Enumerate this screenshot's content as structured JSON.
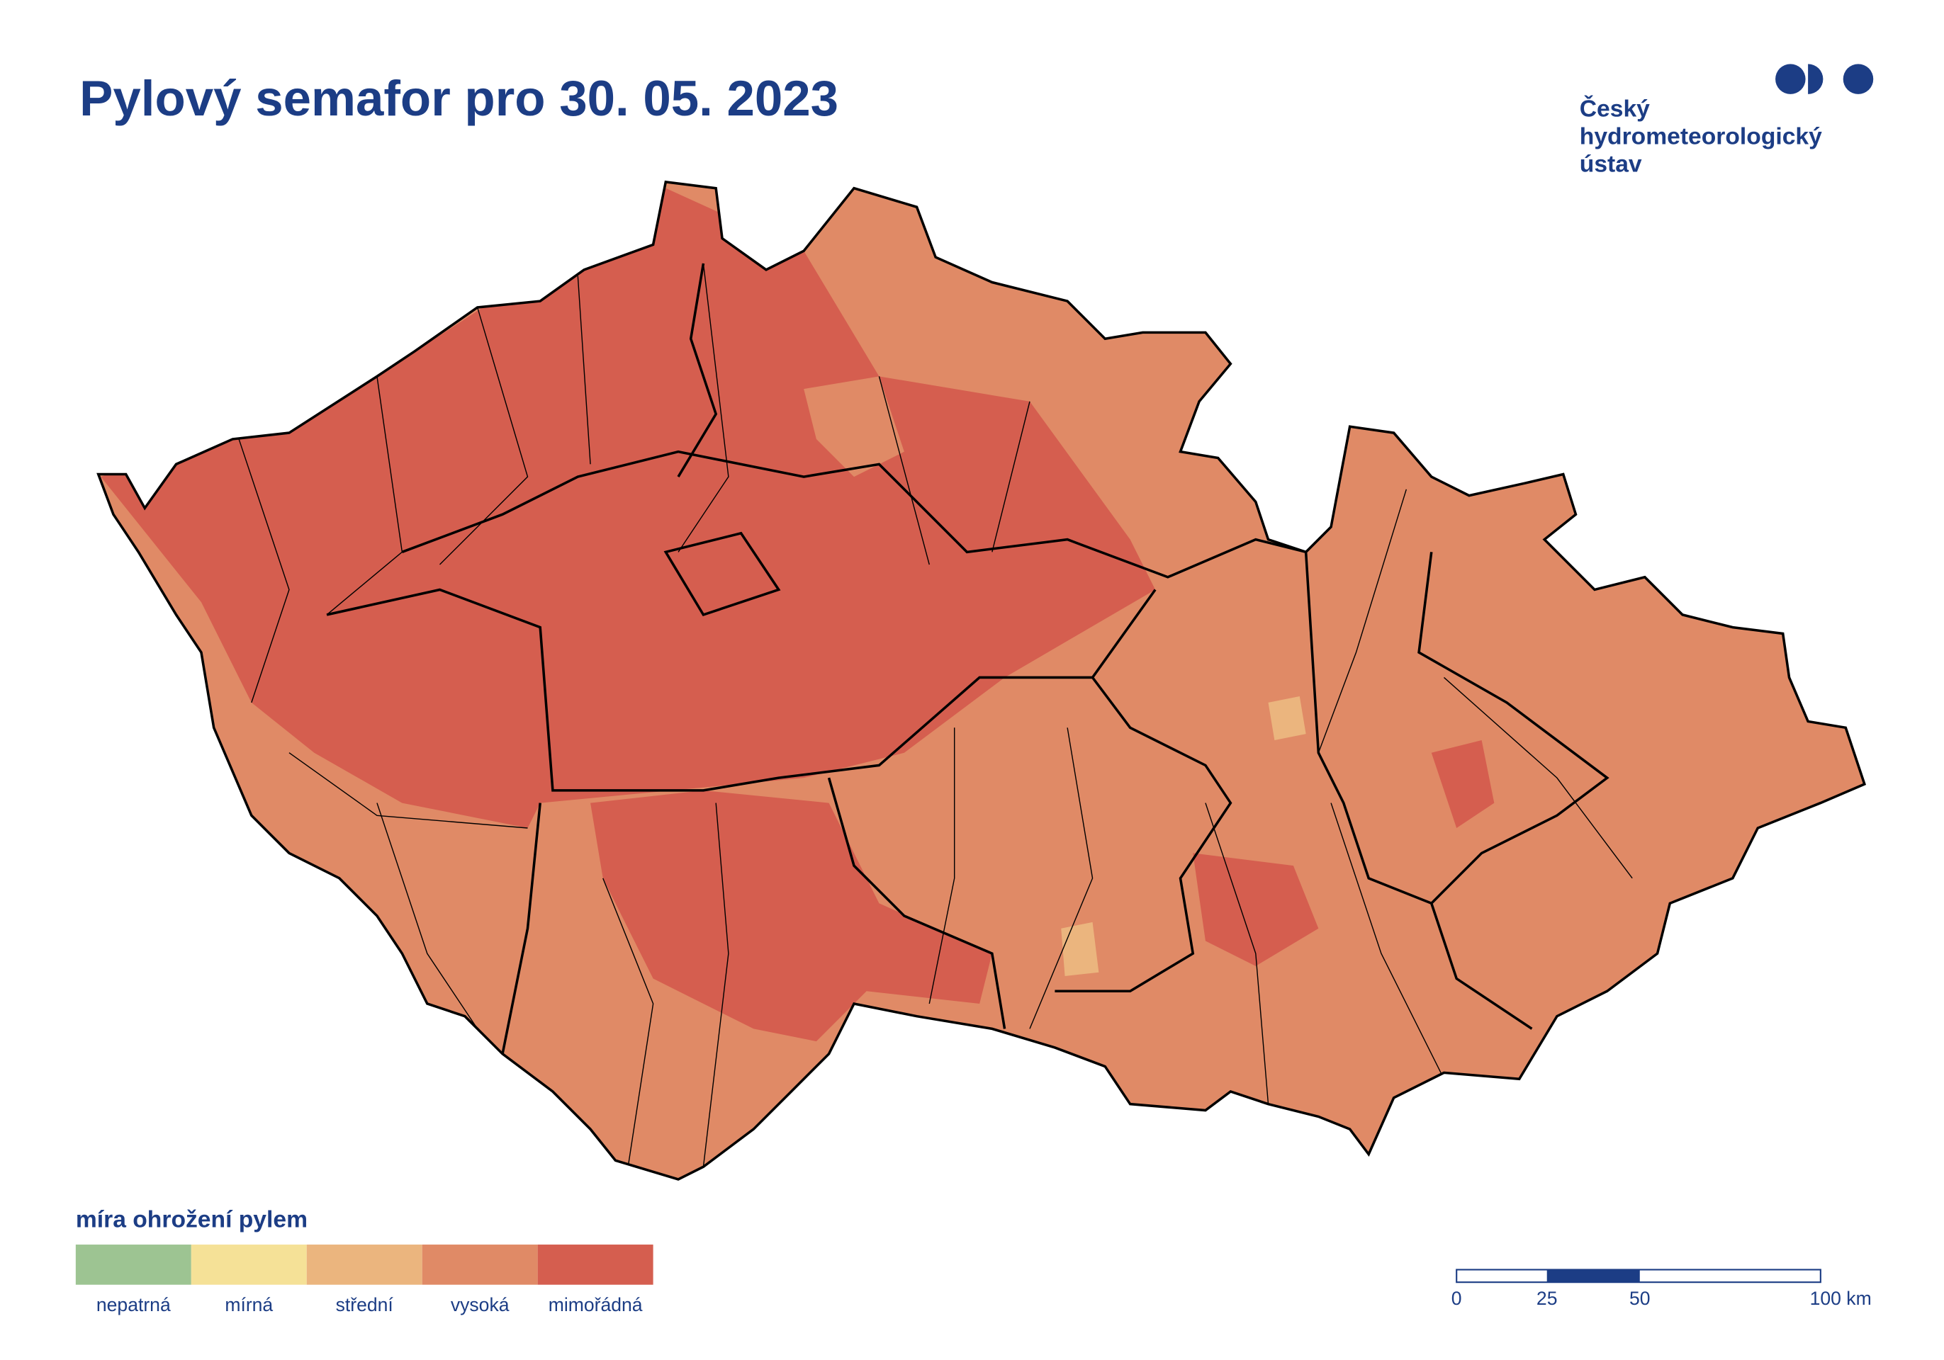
{
  "header": {
    "title": "Pylový semafor pro 30. 05. 2023"
  },
  "logo": {
    "lines": [
      "Český",
      "hydrometeorologický",
      "ústav"
    ]
  },
  "legend": {
    "title": "míra ohrožení pylem",
    "items": [
      {
        "label": "nepatrná",
        "color": "#9dc492"
      },
      {
        "label": "mírná",
        "color": "#f5e197"
      },
      {
        "label": "střední",
        "color": "#ebb57e"
      },
      {
        "label": "vysoká",
        "color": "#e08a66"
      },
      {
        "label": "mimořádná",
        "color": "#d55e4f"
      }
    ]
  },
  "scale_bar": {
    "labels": [
      "0",
      "25",
      "50",
      "100 km"
    ]
  }
}
